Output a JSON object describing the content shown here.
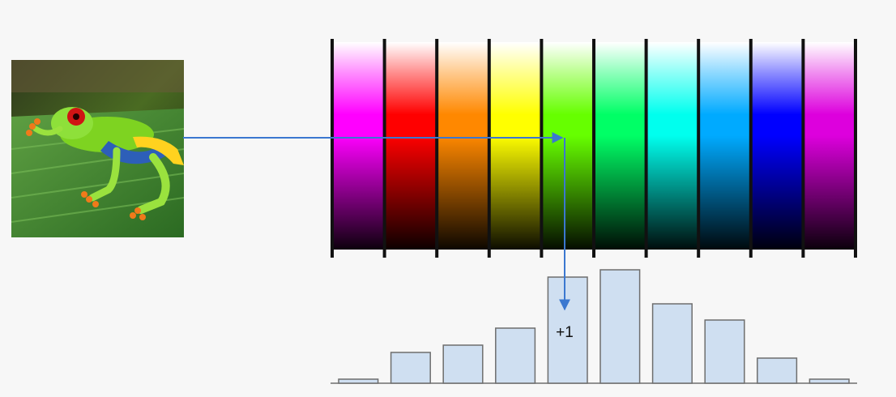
{
  "image": {
    "subject_icon": "tree-frog-photo"
  },
  "color_space": {
    "hue_bins": 10,
    "colors": [
      "#ff00ff",
      "#ff0000",
      "#ff8800",
      "#ffff00",
      "#66ff00",
      "#00ff66",
      "#00ffee",
      "#00aaff",
      "#0000ff",
      "#dd00dd"
    ]
  },
  "chart_data": {
    "type": "bar",
    "title": "",
    "xlabel": "",
    "ylabel": "",
    "ylim": [
      0,
      140
    ],
    "values": [
      5,
      38,
      47,
      68,
      131,
      140,
      98,
      78,
      31,
      5
    ],
    "bar_fill": "#cfdff1",
    "bar_stroke": "#6e6e6e"
  },
  "annotation": {
    "increment_label": "+1",
    "arrow_color": "#3b78d0",
    "highlight_bin": 4
  }
}
